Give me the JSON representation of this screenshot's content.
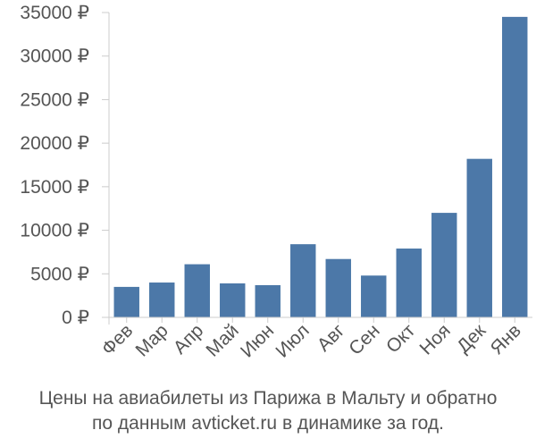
{
  "caption": {
    "line1": "Цены на авиабилеты из Парижа в Мальту и обратно",
    "line2": "по данным avticket.ru в динамике за год."
  },
  "colors": {
    "bar": "#4c78a8",
    "axis": "#cccccc",
    "text": "#555555"
  },
  "chart_data": {
    "type": "bar",
    "categories": [
      "Фев",
      "Мар",
      "Апр",
      "Май",
      "Июн",
      "Июл",
      "Авг",
      "Сен",
      "Окт",
      "Ноя",
      "Дек",
      "Янв"
    ],
    "values": [
      3500,
      4000,
      6100,
      3900,
      3700,
      8400,
      6700,
      4800,
      7900,
      12000,
      18200,
      34500
    ],
    "ylim": [
      0,
      35000
    ],
    "yticks": [
      0,
      5000,
      10000,
      15000,
      20000,
      25000,
      30000,
      35000
    ],
    "ytick_labels": [
      "0 ₽",
      "5000 ₽",
      "10000 ₽",
      "15000 ₽",
      "20000 ₽",
      "25000 ₽",
      "30000 ₽",
      "35000 ₽"
    ],
    "grid": false,
    "legend": "none"
  }
}
